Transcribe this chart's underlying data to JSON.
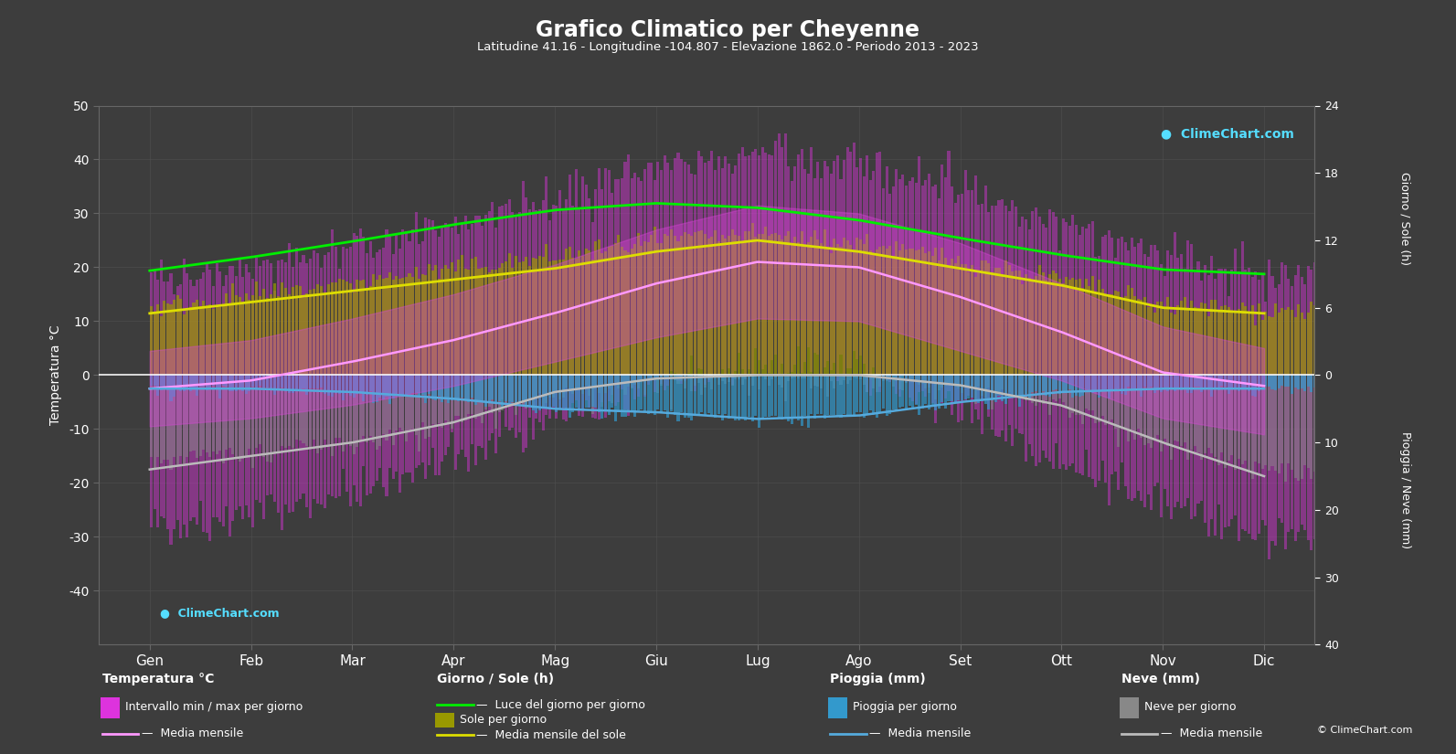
{
  "title": "Grafico Climatico per Cheyenne",
  "subtitle": "Latitudine 41.16 - Longitudine -104.807 - Elevazione 1862.0 - Periodo 2013 - 2023",
  "months": [
    "Gen",
    "Feb",
    "Mar",
    "Apr",
    "Mag",
    "Giu",
    "Lug",
    "Ago",
    "Set",
    "Ott",
    "Nov",
    "Dic"
  ],
  "background_color": "#3d3d3d",
  "plot_bg_color": "#3d3d3d",
  "temp_ylim": [
    -50,
    50
  ],
  "temp_mean": [
    -2.5,
    -1.0,
    2.5,
    6.5,
    11.5,
    17.0,
    21.0,
    20.0,
    14.5,
    8.0,
    0.5,
    -2.0
  ],
  "temp_max_mean": [
    4.5,
    6.5,
    10.5,
    15.0,
    20.5,
    27.0,
    31.5,
    30.0,
    24.5,
    17.0,
    9.0,
    5.0
  ],
  "temp_min_mean": [
    -9.5,
    -8.0,
    -5.5,
    -2.0,
    2.5,
    7.0,
    10.5,
    10.0,
    4.5,
    -1.0,
    -8.0,
    -11.0
  ],
  "temp_max_abs": [
    18.0,
    20.0,
    24.0,
    28.0,
    33.0,
    38.0,
    41.0,
    39.0,
    35.0,
    28.0,
    22.0,
    19.0
  ],
  "temp_min_abs": [
    -28.0,
    -26.0,
    -22.0,
    -16.0,
    -8.0,
    -2.0,
    2.0,
    1.0,
    -6.0,
    -16.0,
    -24.0,
    -30.0
  ],
  "daylight": [
    9.3,
    10.5,
    11.9,
    13.4,
    14.7,
    15.3,
    14.9,
    13.8,
    12.2,
    10.7,
    9.4,
    9.0
  ],
  "sunshine_daily": [
    6.0,
    7.0,
    8.2,
    9.5,
    10.5,
    12.0,
    12.5,
    11.8,
    10.2,
    8.5,
    6.2,
    5.8
  ],
  "sunshine_mean": [
    5.5,
    6.5,
    7.5,
    8.5,
    9.5,
    11.0,
    12.0,
    11.0,
    9.5,
    8.0,
    6.0,
    5.5
  ],
  "rain_daily_mm": [
    1.5,
    1.5,
    2.0,
    3.0,
    4.5,
    5.0,
    6.0,
    5.5,
    3.5,
    2.0,
    1.5,
    1.5
  ],
  "rain_mean_mm": [
    2.0,
    2.0,
    2.5,
    3.5,
    5.0,
    5.5,
    6.5,
    6.0,
    4.0,
    2.5,
    2.0,
    2.0
  ],
  "snow_daily_mm": [
    12.0,
    10.0,
    9.0,
    6.0,
    2.0,
    0.3,
    0.0,
    0.0,
    1.0,
    3.5,
    9.0,
    13.0
  ],
  "snow_mean_mm": [
    14.0,
    12.0,
    10.0,
    7.0,
    2.5,
    0.5,
    0.0,
    0.0,
    1.5,
    4.5,
    10.0,
    15.0
  ],
  "sun_scale": 2.0833,
  "rain_scale": 1.25,
  "color_magenta": "#dd33dd",
  "color_temp_mean_line": "#ff99ff",
  "color_daylight_line": "#00ee00",
  "color_sunshine_bar": "#999900",
  "color_sunshine_mean_line": "#dddd00",
  "color_rain_bar": "#3399cc",
  "color_rain_mean_line": "#55aadd",
  "color_snow_bar": "#888888",
  "color_snow_mean_line": "#bbbbbb",
  "color_zero_line": "#ffffff",
  "color_blue_monthly": "#4488cc"
}
